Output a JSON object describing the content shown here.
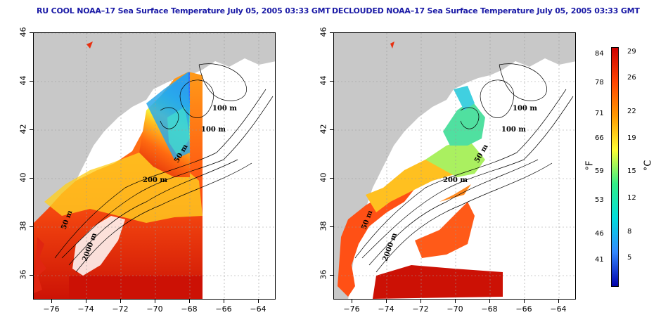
{
  "titles": {
    "left": "RU COOL NOAA–17 Sea Surface Temperature July 05, 2005 03:33 GMT",
    "right": "DECLOUDED NOAA–17 Sea Surface Temperature July 05, 2005 03:33 GMT"
  },
  "axes": {
    "lat_ticks": [
      "46",
      "44",
      "42",
      "40",
      "38",
      "36"
    ],
    "lon_ticks": [
      "−76",
      "−74",
      "−72",
      "−70",
      "−68",
      "−66",
      "−64"
    ],
    "lat_range": [
      35,
      46
    ],
    "lon_range": [
      -77.2,
      -63
    ]
  },
  "contour_labels": {
    "m100a": "100 m",
    "m100b": "100 m",
    "m50": "50 m",
    "m200": "200 m",
    "m2000": "2000 m",
    "m50b": "50 m"
  },
  "colorbar": {
    "fahrenheit_unit": "°F",
    "celsius_unit": "°C",
    "fahrenheit_ticks": [
      "84",
      "78",
      "71",
      "66",
      "59",
      "53",
      "46",
      "41"
    ],
    "celsius_ticks": [
      "29",
      "26",
      "22",
      "19",
      "15",
      "12",
      "8",
      "5"
    ],
    "colors": [
      "#cc0000",
      "#ff4400",
      "#ff9900",
      "#ffff33",
      "#33ee88",
      "#00dddd",
      "#3388ff",
      "#0000aa"
    ]
  },
  "colors": {
    "land": "#c8c8c8",
    "cold": "#2aa0f0",
    "warm": "#e83010",
    "title": "#1a1aa6"
  }
}
